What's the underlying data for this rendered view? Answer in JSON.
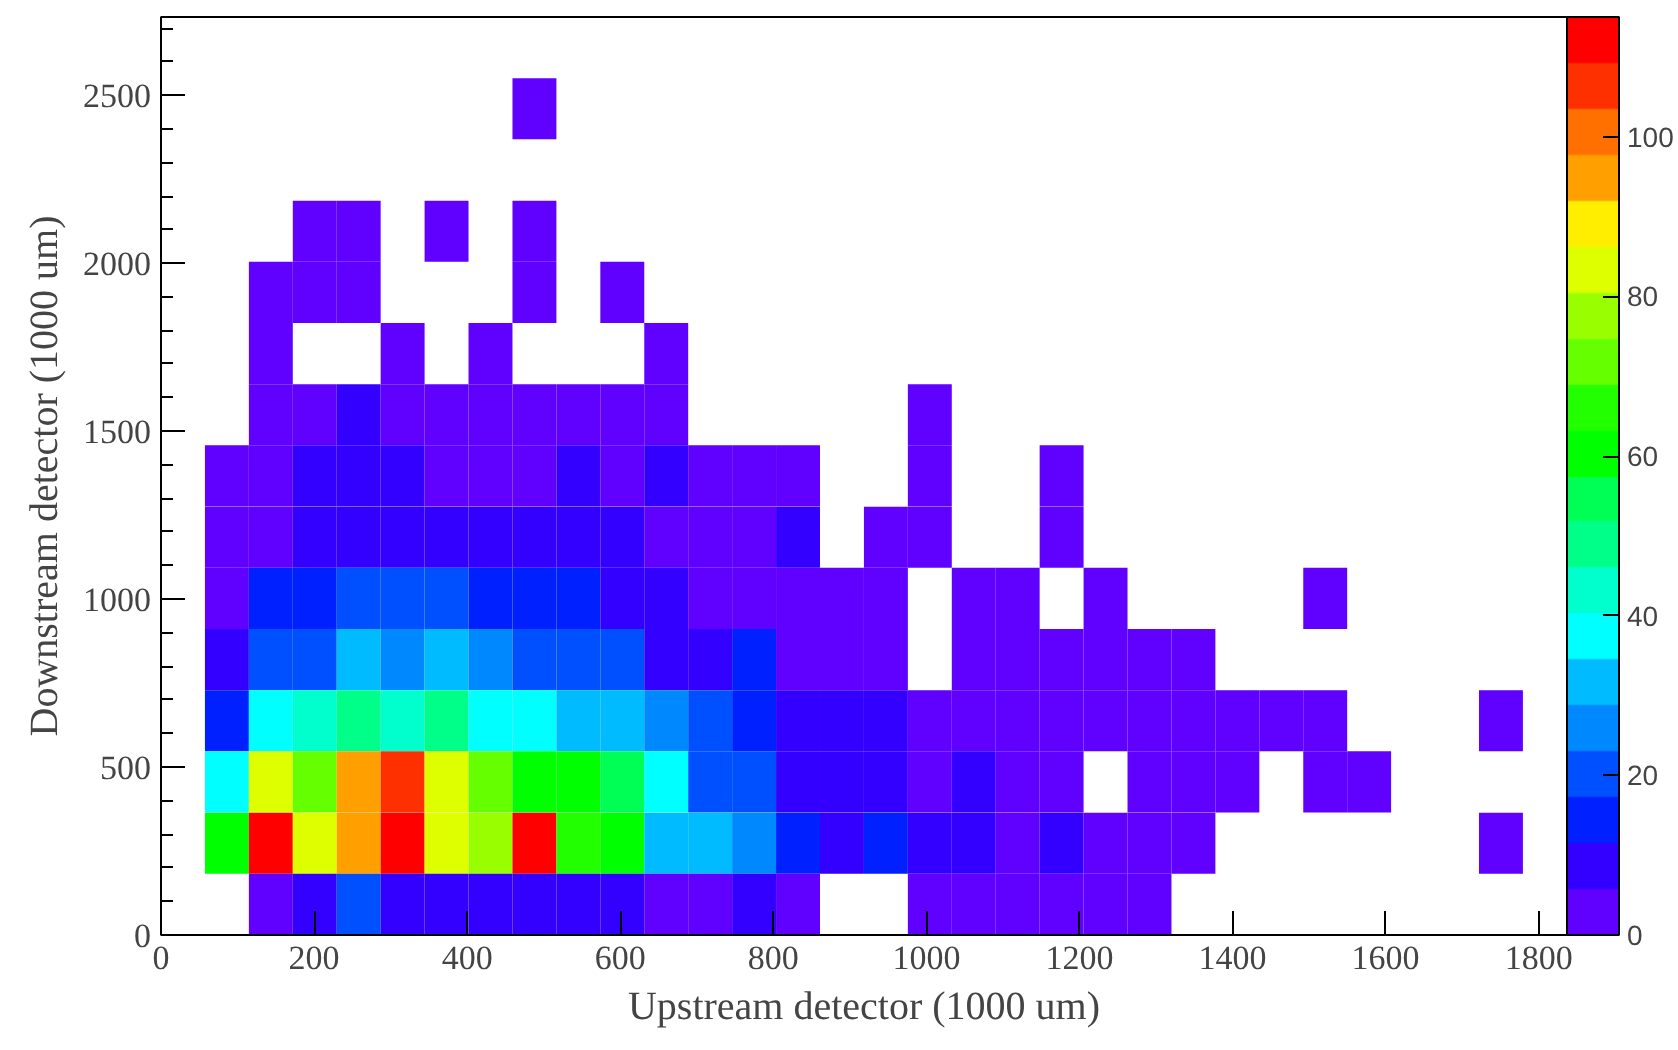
{
  "chart_data": {
    "type": "heatmap",
    "xlabel": "Upstream detector (1000 um)",
    "ylabel": "Downstream detector (1000 um)",
    "x": [
      28.7,
      86.1,
      143.5,
      200.9,
      258.3,
      315.7,
      373.1,
      430.5,
      487.9,
      545.3,
      602.7,
      660.1,
      717.5,
      774.9,
      832.3,
      889.7,
      947.1,
      1004.5,
      1061.9,
      1119.3,
      1176.7,
      1234.1,
      1291.5,
      1348.9,
      1406.3,
      1463.7,
      1521.1,
      1578.5,
      1635.9,
      1693.3,
      1750.7,
      1808.1
    ],
    "y": [
      2460,
      2095,
      1913,
      1731,
      1549,
      1367,
      1184,
      1002,
      820,
      638,
      456,
      273,
      91
    ],
    "xlim": [
      0,
      1837
    ],
    "ylim": [
      0,
      2733
    ],
    "xticks": [
      0,
      200,
      400,
      600,
      800,
      1000,
      1200,
      1400,
      1600,
      1800
    ],
    "yticks": [
      0,
      500,
      1000,
      1500,
      2000,
      2500
    ],
    "clim": [
      0,
      115
    ],
    "cticks": [
      0,
      20,
      40,
      60,
      80,
      100
    ],
    "colors": [
      "#6000ff",
      "#3300ff",
      "#0020ff",
      "#0050ff",
      "#0088ff",
      "#00bbff",
      "#00ffff",
      "#00ffcc",
      "#00ff88",
      "#00ff55",
      "#00ff00",
      "#22ff00",
      "#66ff00",
      "#99ff00",
      "#ddff00",
      "#ffee00",
      "#ffa000",
      "#ff7000",
      "#ff3000",
      "#ff0000"
    ],
    "grid": false,
    "cells": [
      [
        null,
        null,
        null,
        null,
        null,
        null,
        null,
        null,
        3,
        null,
        null,
        null,
        null,
        null,
        null,
        null,
        null,
        null,
        null,
        null,
        null,
        null,
        null,
        null,
        null,
        null,
        null,
        null,
        null,
        null,
        null,
        null
      ],
      [
        null,
        null,
        null,
        3,
        3,
        null,
        3,
        null,
        3,
        null,
        null,
        null,
        null,
        null,
        null,
        null,
        null,
        null,
        null,
        null,
        null,
        null,
        null,
        null,
        null,
        null,
        null,
        null,
        null,
        null,
        null,
        null
      ],
      [
        null,
        null,
        3,
        3,
        3,
        null,
        null,
        null,
        3,
        null,
        3,
        null,
        null,
        null,
        null,
        null,
        null,
        null,
        null,
        null,
        null,
        null,
        null,
        null,
        null,
        null,
        null,
        null,
        null,
        null,
        null,
        null
      ],
      [
        null,
        null,
        3,
        null,
        null,
        3,
        null,
        3,
        null,
        null,
        null,
        3,
        null,
        null,
        null,
        null,
        null,
        null,
        null,
        null,
        null,
        null,
        null,
        null,
        null,
        null,
        null,
        null,
        null,
        null,
        null,
        null
      ],
      [
        null,
        null,
        3,
        3,
        9,
        3,
        3,
        3,
        3,
        3,
        3,
        3,
        null,
        null,
        null,
        null,
        null,
        3,
        null,
        null,
        null,
        null,
        null,
        null,
        null,
        null,
        null,
        null,
        null,
        null,
        null,
        null
      ],
      [
        null,
        3,
        3,
        9,
        9,
        9,
        3,
        3,
        3,
        9,
        3,
        9,
        3,
        3,
        3,
        null,
        null,
        3,
        null,
        null,
        3,
        null,
        null,
        null,
        null,
        null,
        null,
        null,
        null,
        null,
        null,
        null
      ],
      [
        null,
        3,
        3,
        9,
        9,
        9,
        9,
        9,
        9,
        9,
        9,
        3,
        3,
        3,
        9,
        null,
        3,
        3,
        null,
        null,
        3,
        null,
        null,
        null,
        null,
        null,
        null,
        null,
        null,
        null,
        null,
        null
      ],
      [
        null,
        3,
        14,
        14,
        20,
        20,
        20,
        14,
        14,
        14,
        9,
        9,
        3,
        3,
        3,
        3,
        3,
        null,
        3,
        3,
        null,
        3,
        null,
        null,
        null,
        null,
        3,
        null,
        null,
        null,
        null,
        null
      ],
      [
        null,
        9,
        20,
        20,
        32,
        26,
        32,
        26,
        20,
        20,
        20,
        9,
        9,
        14,
        3,
        3,
        3,
        null,
        3,
        3,
        3,
        3,
        3,
        3,
        null,
        null,
        null,
        null,
        null,
        null,
        null,
        null
      ],
      [
        null,
        14,
        37,
        43,
        49,
        43,
        49,
        37,
        37,
        32,
        32,
        26,
        20,
        14,
        9,
        9,
        9,
        3,
        3,
        3,
        3,
        3,
        3,
        3,
        3,
        3,
        3,
        null,
        null,
        null,
        3,
        null
      ],
      [
        null,
        37,
        83,
        72,
        95,
        106,
        83,
        72,
        60,
        60,
        55,
        37,
        20,
        20,
        9,
        9,
        9,
        3,
        9,
        3,
        3,
        null,
        3,
        3,
        3,
        null,
        3,
        3,
        null,
        null,
        null,
        null
      ],
      [
        null,
        60,
        112,
        83,
        95,
        112,
        83,
        78,
        112,
        66,
        60,
        32,
        32,
        26,
        14,
        9,
        14,
        9,
        9,
        3,
        9,
        3,
        3,
        3,
        null,
        null,
        null,
        null,
        null,
        null,
        3,
        null
      ],
      [
        null,
        null,
        3,
        9,
        20,
        9,
        9,
        9,
        9,
        9,
        9,
        3,
        3,
        9,
        3,
        null,
        null,
        3,
        3,
        3,
        3,
        3,
        3,
        null,
        null,
        null,
        null,
        null,
        null,
        null,
        null,
        null
      ]
    ]
  }
}
